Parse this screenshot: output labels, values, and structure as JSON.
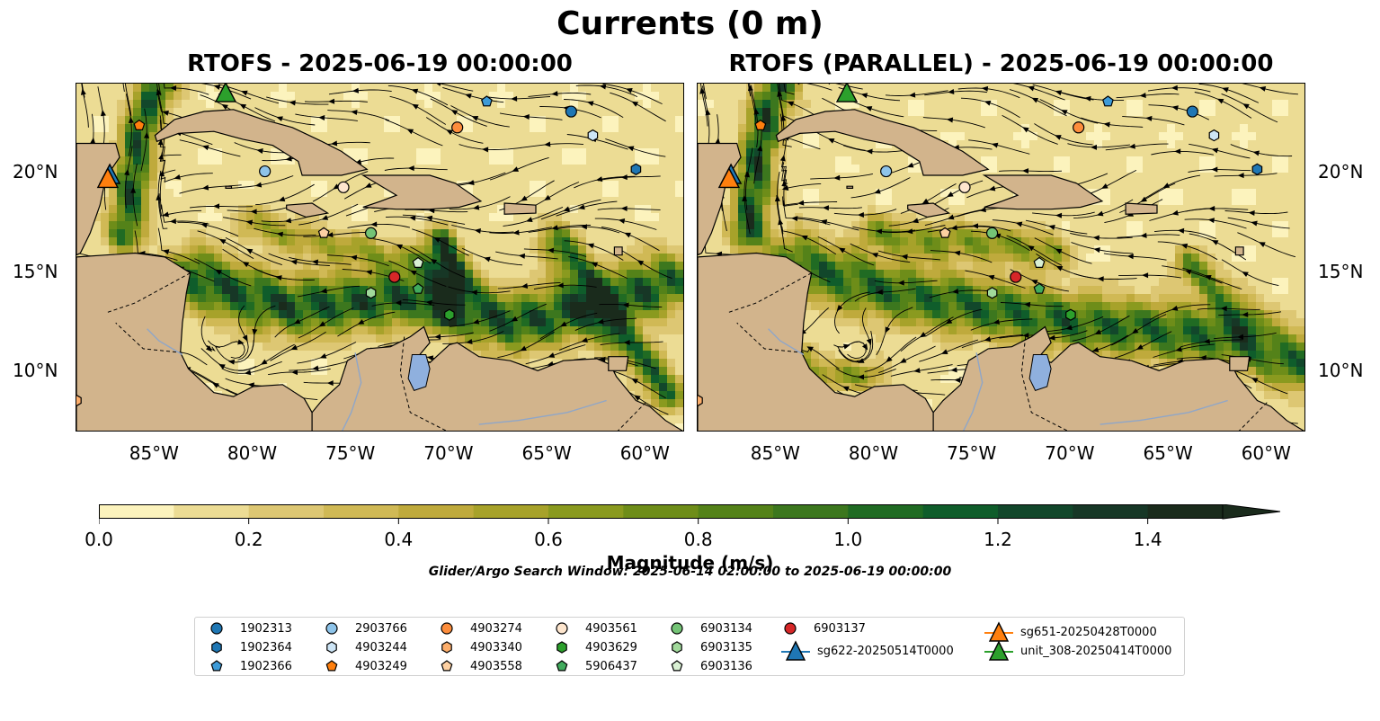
{
  "figure": {
    "suptitle": "Currents (0 m)",
    "left_title": "RTOFS - 2025-06-19 00:00:00",
    "right_title": "RTOFS (PARALLEL) - 2025-06-19 00:00:00",
    "search_window": "Glider/Argo Search Window: 2025-06-14 02:00:00 to 2025-06-19 00:00:00"
  },
  "chart_data": {
    "type": "heatmap",
    "variable": "Current magnitude (0 m)",
    "map_extent": {
      "lon": [
        -89.0,
        -58.0
      ],
      "lat": [
        7.0,
        24.5
      ]
    },
    "lon_ticks": [
      "85°W",
      "80°W",
      "75°W",
      "70°W",
      "65°W",
      "60°W"
    ],
    "lon_values": [
      -85,
      -80,
      -75,
      -70,
      -65,
      -60
    ],
    "lat_ticks": [
      "20°N",
      "15°N",
      "10°N"
    ],
    "lat_values": [
      20,
      15,
      10
    ],
    "colorbar": {
      "label": "Magnitude (m/s)",
      "range": [
        0.0,
        1.5
      ],
      "extend": "max",
      "ticks": [
        "0.0",
        "0.2",
        "0.4",
        "0.6",
        "0.8",
        "1.0",
        "1.2",
        "1.4"
      ],
      "tick_values": [
        0.0,
        0.2,
        0.4,
        0.6,
        0.8,
        1.0,
        1.2,
        1.4
      ],
      "levels": [
        0.0,
        0.1,
        0.2,
        0.3,
        0.4,
        0.5,
        0.6,
        0.7,
        0.8,
        0.9,
        1.0,
        1.1,
        1.2,
        1.3,
        1.4,
        1.5
      ],
      "colors": [
        "#fcf3bd",
        "#ecdc94",
        "#ddc773",
        "#d0b955",
        "#bfaa3c",
        "#a7a22a",
        "#8a9a1f",
        "#6e8d19",
        "#548219",
        "#3c771e",
        "#206b23",
        "#0f5d2b",
        "#12472b",
        "#173726",
        "#1a2b1c"
      ]
    },
    "land_color": "#d2b48c",
    "lake_color": "#8fb0de",
    "platforms": [
      {
        "name": "1902313",
        "marker": "circle",
        "color": "#1f77b4",
        "lon": -63.8,
        "lat": 23.1
      },
      {
        "name": "1902364",
        "marker": "hexagon",
        "color": "#1f77b4",
        "lon": -60.5,
        "lat": 20.2
      },
      {
        "name": "1902366",
        "marker": "pentagon",
        "color": "#3d9bd8",
        "lon": -68.1,
        "lat": 23.6
      },
      {
        "name": "2903766",
        "marker": "circle",
        "color": "#8ec4ea",
        "lon": -79.4,
        "lat": 20.1
      },
      {
        "name": "4903244",
        "marker": "hexagon",
        "color": "#cde5f6",
        "lon": -62.7,
        "lat": 21.9
      },
      {
        "name": "4903249",
        "marker": "pentagon",
        "color": "#ff7f0e",
        "lon": -85.8,
        "lat": 22.4
      },
      {
        "name": "4903274",
        "marker": "circle",
        "color": "#fd8d3c",
        "lon": -69.6,
        "lat": 22.3
      },
      {
        "name": "4903340",
        "marker": "hexagon",
        "color": "#fdae6b",
        "lon": -89.0,
        "lat": 8.6
      },
      {
        "name": "4903558",
        "marker": "pentagon",
        "color": "#fdd0a2",
        "lon": -76.4,
        "lat": 17.0
      },
      {
        "name": "4903561",
        "marker": "circle",
        "color": "#fee6ce",
        "lon": -75.4,
        "lat": 19.3
      },
      {
        "name": "4903629",
        "marker": "hexagon",
        "color": "#2ca02c",
        "lon": -70.0,
        "lat": 12.9
      },
      {
        "name": "5906437",
        "marker": "pentagon",
        "color": "#41ab5d",
        "lon": -71.6,
        "lat": 14.2
      },
      {
        "name": "6903134",
        "marker": "circle",
        "color": "#74c476",
        "lon": -74.0,
        "lat": 17.0
      },
      {
        "name": "6903135",
        "marker": "hexagon",
        "color": "#a1d99b",
        "lon": -74.0,
        "lat": 14.0
      },
      {
        "name": "6903136",
        "marker": "pentagon",
        "color": "#d9f0d3",
        "lon": -71.6,
        "lat": 15.5
      },
      {
        "name": "6903137",
        "marker": "circle",
        "color": "#d62728",
        "lon": -72.8,
        "lat": 14.8
      }
    ],
    "gliders": [
      {
        "name": "sg622-20250514T0000",
        "color": "#1f77b4",
        "lon": -87.3,
        "lat": 19.9
      },
      {
        "name": "sg651-20250428T0000",
        "color": "#ff7f0e",
        "lon": -87.4,
        "lat": 19.7
      },
      {
        "name": "unit_308-20250414T0000",
        "color": "#2ca02c",
        "lon": -81.4,
        "lat": 24.0
      }
    ]
  }
}
